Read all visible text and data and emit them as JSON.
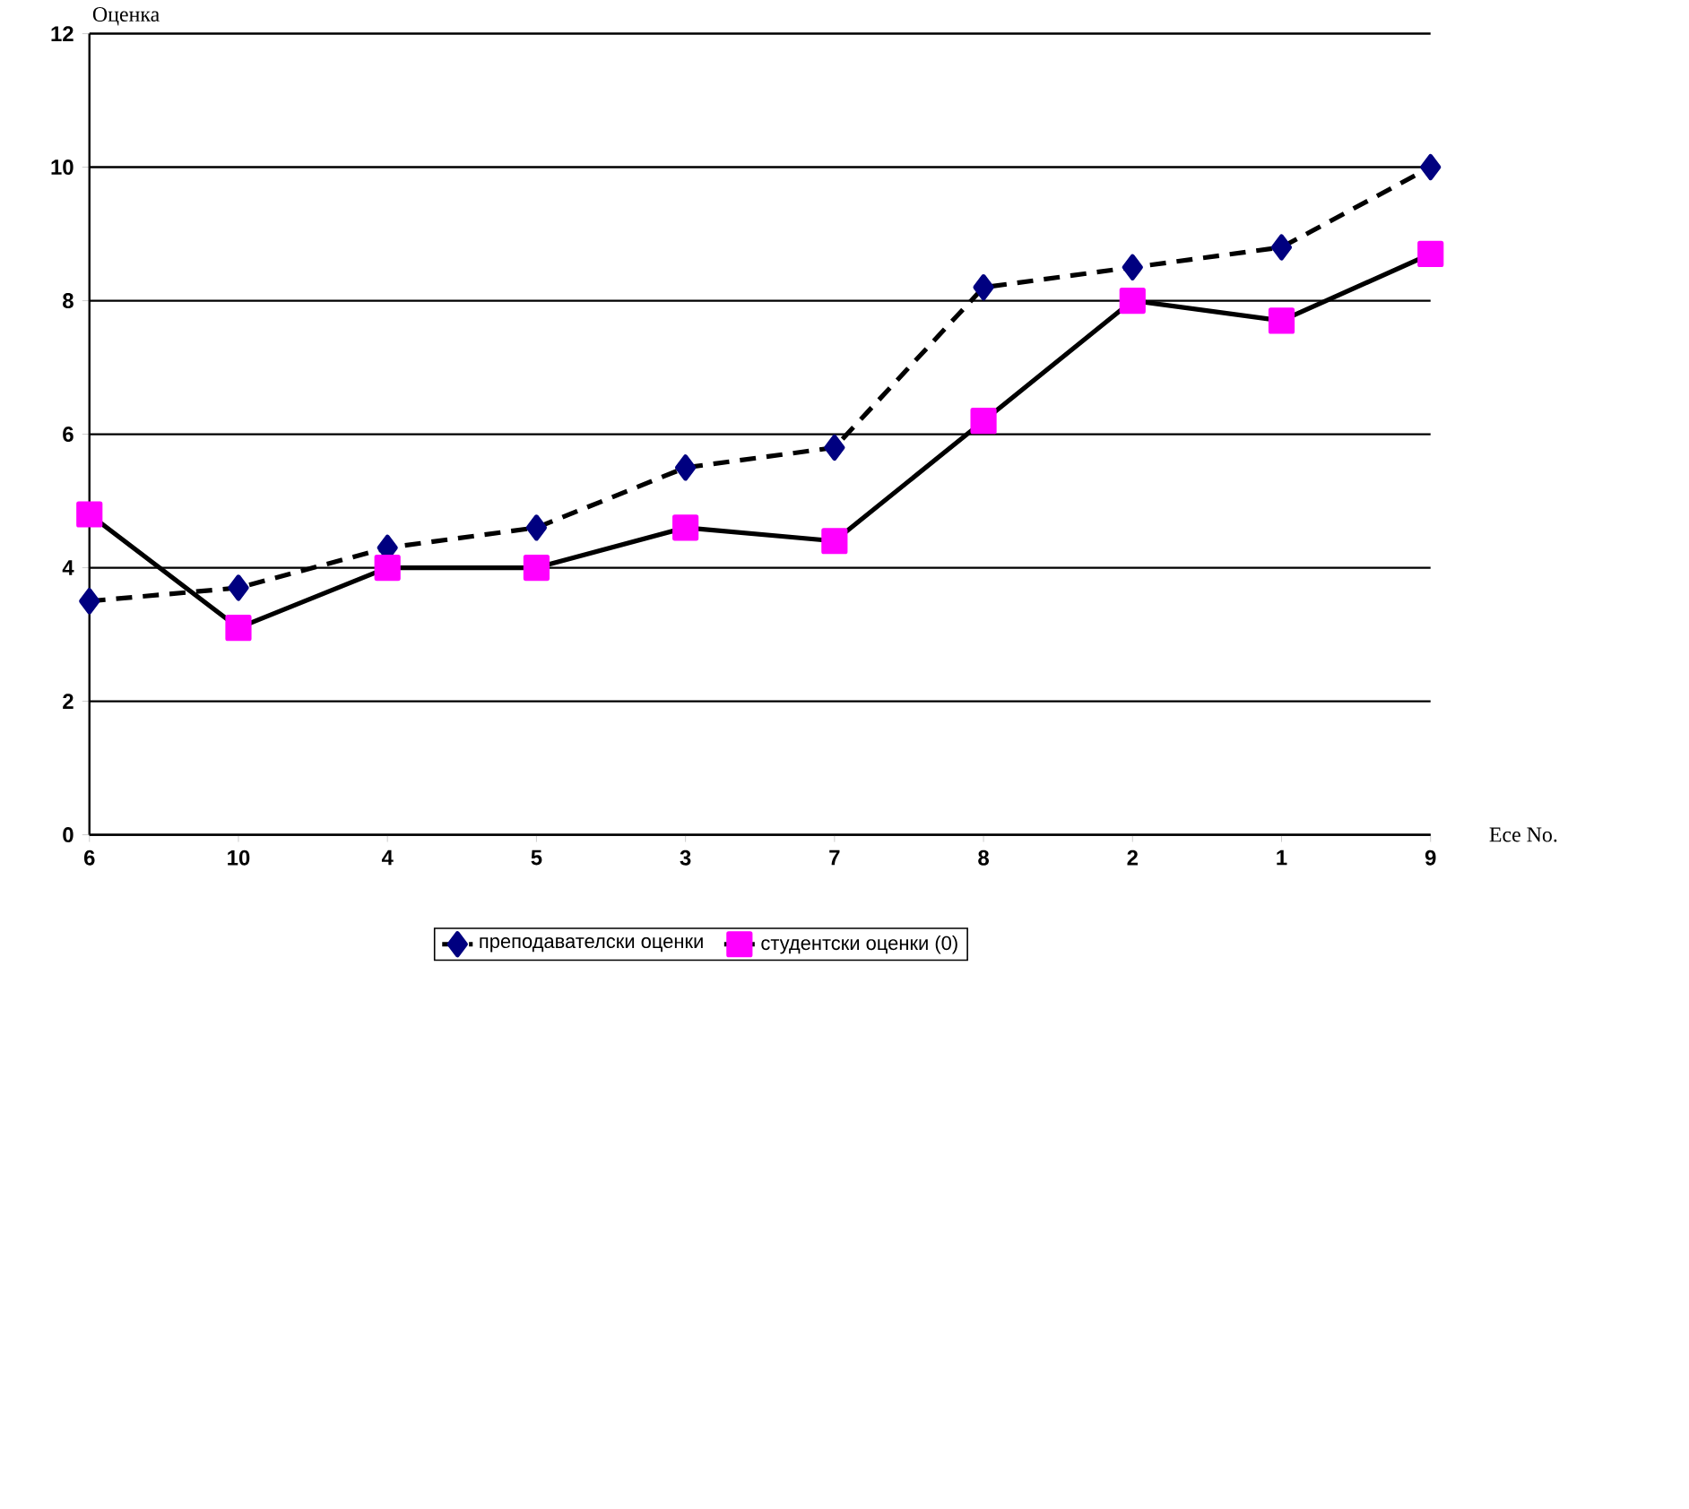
{
  "chart_data": {
    "type": "line",
    "xlabel": "Ece No.",
    "ylabel": "Оценка",
    "categories": [
      "6",
      "10",
      "4",
      "5",
      "3",
      "7",
      "8",
      "2",
      "1",
      "9"
    ],
    "series": [
      {
        "name": "преподавателски оценки",
        "color": "#000080",
        "marker": "diamond",
        "line_style": "dashed",
        "values": [
          3.5,
          3.7,
          4.3,
          4.6,
          5.5,
          5.8,
          8.2,
          8.5,
          8.8,
          10
        ]
      },
      {
        "name": "студентски оценки (0)",
        "color": "#ff00ff",
        "marker": "square",
        "line_style": "solid",
        "values": [
          4.8,
          3.1,
          4.0,
          4.0,
          4.6,
          4.4,
          6.2,
          8.0,
          7.7,
          8.7
        ]
      }
    ],
    "ylim": [
      0,
      12
    ],
    "yticks": [
      0,
      2,
      4,
      6,
      8,
      10,
      12
    ],
    "grid": "y",
    "legend": "bottom"
  }
}
